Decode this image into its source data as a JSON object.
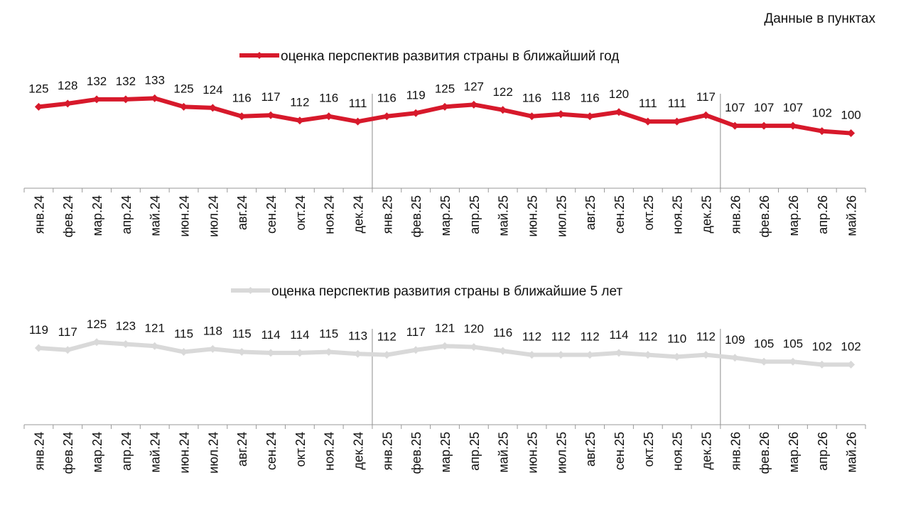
{
  "units_note": "Данные в пунктах",
  "chart_data": [
    {
      "type": "line",
      "categories": [
        "янв.24",
        "фев.24",
        "мар.24",
        "апр.24",
        "май.24",
        "июн.24",
        "июл.24",
        "авг.24",
        "сен.24",
        "окт.24",
        "ноя.24",
        "дек.24",
        "янв.25",
        "фев.25",
        "мар.25",
        "апр.25",
        "май.25",
        "июн.25",
        "июл.25",
        "авг.25",
        "сен.25",
        "окт.25",
        "ноя.25",
        "дек.25",
        "янв.26",
        "фев.26",
        "мар.26",
        "апр.26",
        "май.26"
      ],
      "series": [
        {
          "name": "оценка перспектив развития страны в ближайший год",
          "color": "#d7192b",
          "values": [
            125,
            128,
            132,
            132,
            133,
            125,
            124,
            116,
            117,
            112,
            116,
            111,
            116,
            119,
            125,
            127,
            122,
            116,
            118,
            116,
            120,
            111,
            111,
            117,
            107,
            107,
            107,
            102,
            100
          ]
        }
      ],
      "legend_position": "top",
      "year_dividers_after": [
        "дек.24",
        "дек.25"
      ],
      "grid": false
    },
    {
      "type": "line",
      "categories": [
        "янв.24",
        "фев.24",
        "мар.24",
        "апр.24",
        "май.24",
        "июн.24",
        "июл.24",
        "авг.24",
        "сен.24",
        "окт.24",
        "ноя.24",
        "дек.24",
        "янв.25",
        "фев.25",
        "мар.25",
        "апр.25",
        "май.25",
        "июн.25",
        "июл.25",
        "авг.25",
        "сен.25",
        "окт.25",
        "ноя.25",
        "дек.25",
        "янв.26",
        "фев.26",
        "мар.26",
        "апр.26",
        "май.26"
      ],
      "series": [
        {
          "name": "оценка перспектив развития страны в ближайшие 5 лет",
          "color": "#d9d9d9",
          "values": [
            119,
            117,
            125,
            123,
            121,
            115,
            118,
            115,
            114,
            114,
            115,
            113,
            112,
            117,
            121,
            120,
            116,
            112,
            112,
            112,
            114,
            112,
            110,
            112,
            109,
            105,
            105,
            102,
            102
          ]
        }
      ],
      "legend_position": "top",
      "year_dividers_after": [
        "дек.24",
        "дек.25"
      ],
      "grid": false
    }
  ]
}
